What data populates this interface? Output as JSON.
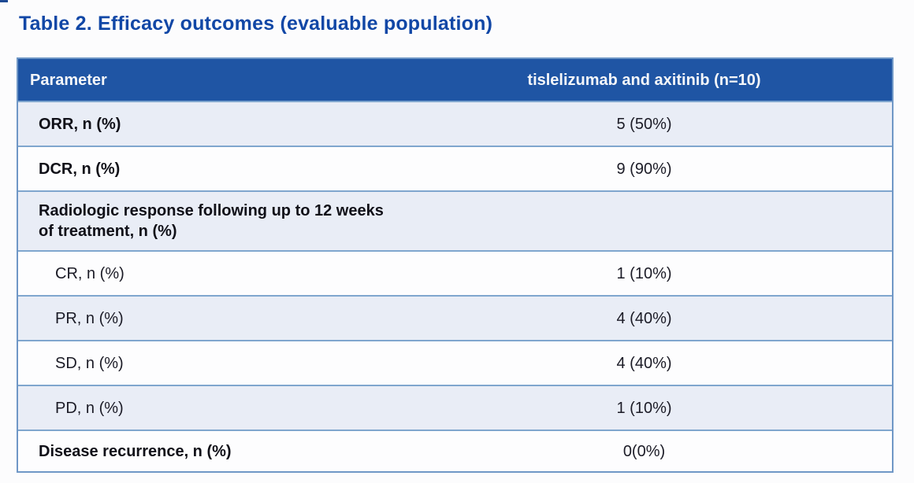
{
  "title": "Table 2. Efficacy outcomes (evaluable population)",
  "table": {
    "header": {
      "parameter": "Parameter",
      "treatment": "tislelizumab and axitinib (n=10)"
    },
    "rows": [
      {
        "label": "ORR, n (%)",
        "value": "5 (50%)"
      },
      {
        "label": "DCR, n (%)",
        "value": "9 (90%)"
      },
      {
        "label": "Radiologic response following up to 12 weeks of treatment, n (%)",
        "value": ""
      },
      {
        "label": "CR, n (%)",
        "value": "1 (10%)"
      },
      {
        "label": "PR, n (%)",
        "value": "4 (40%)"
      },
      {
        "label": "SD, n (%)",
        "value": "4 (40%)"
      },
      {
        "label": "PD, n (%)",
        "value": "1 (10%)"
      },
      {
        "label": "Disease recurrence, n (%)",
        "value": "0(0%)"
      }
    ]
  },
  "colors": {
    "header_bg": "#1f55a4",
    "row_shade_bg": "#e9edf6",
    "row_white_bg": "#fdfdfe",
    "row_border": "#7fa6ce",
    "outer_border": "#6f97c6",
    "title_text": "#1147a6",
    "header_text": "#f4f6f9",
    "body_text": "#1b1b26"
  }
}
